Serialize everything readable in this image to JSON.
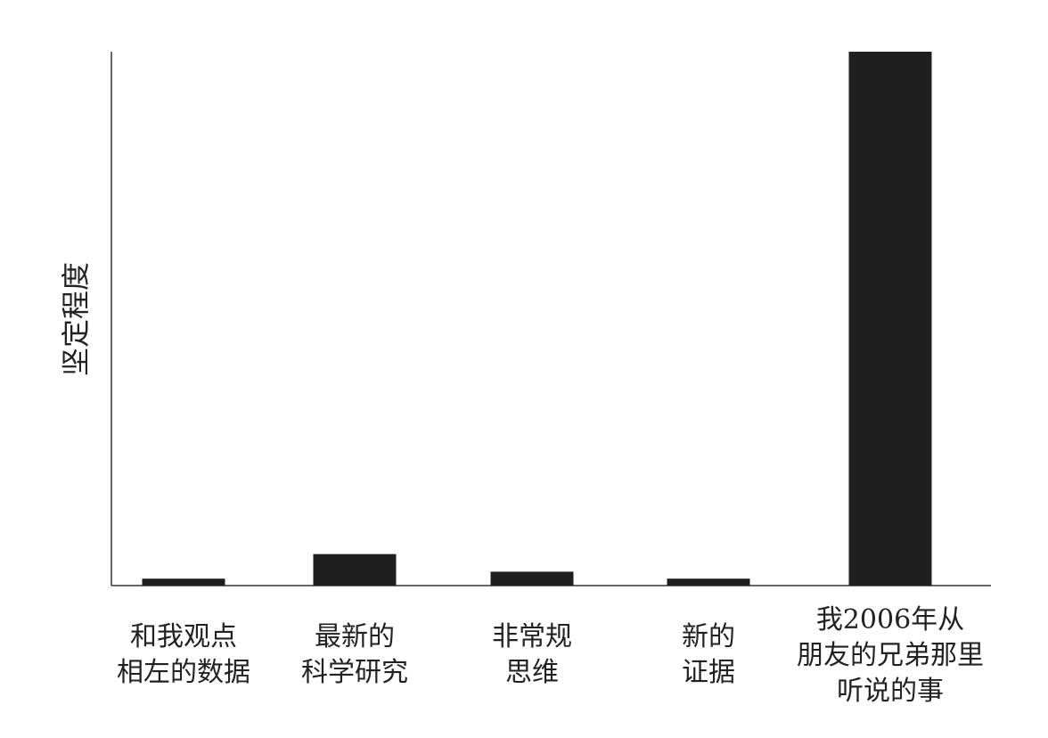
{
  "chart_data": {
    "type": "bar",
    "title": "",
    "xlabel": "",
    "ylabel": "坚定程度",
    "ylim": [
      0,
      100
    ],
    "grid": false,
    "legend": "none",
    "categories": [
      [
        "和我观点",
        "相左的数据"
      ],
      [
        "最新的",
        "科学研究"
      ],
      [
        "非常规",
        "思维"
      ],
      [
        "新的",
        "证据"
      ],
      [
        "我2006年从",
        "朋友的兄弟那里",
        "听说的事"
      ]
    ],
    "values": [
      1.3,
      5.9,
      2.6,
      1.3,
      100
    ],
    "colors": {
      "bar": "#1f1f1f",
      "axis": "#333333"
    }
  }
}
